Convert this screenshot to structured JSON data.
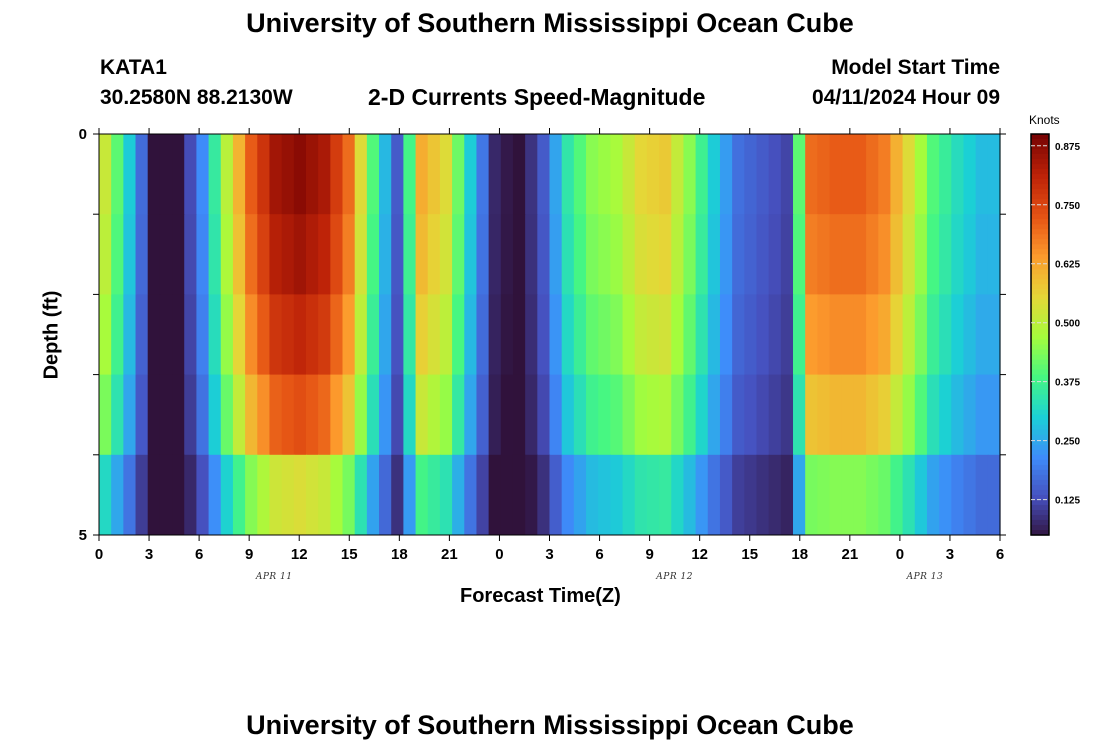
{
  "header": {
    "title": "University of Southern Mississippi Ocean Cube",
    "station": "KATA1",
    "coords": "30.2580N  88.2130W",
    "plot_title": "2-D Currents Speed-Magnitude",
    "model_start_label": "Model Start Time",
    "model_start_value": "04/11/2024 Hour 09",
    "bottom_title": "University of Southern Mississippi Ocean Cube"
  },
  "chart_data": {
    "type": "heatmap",
    "title": "2-D Currents Speed-Magnitude",
    "xlabel": "Forecast Time(Z)",
    "ylabel": "Depth (ft)",
    "x_tick_labels": [
      "0",
      "3",
      "6",
      "9",
      "12",
      "15",
      "18",
      "21",
      "0",
      "3",
      "6",
      "9",
      "12",
      "15",
      "18",
      "21",
      "0",
      "3",
      "6"
    ],
    "day_labels": [
      {
        "label": "APR 11",
        "at_tick": 3.5
      },
      {
        "label": "APR 12",
        "at_tick": 11.5
      },
      {
        "label": "APR 13",
        "at_tick": 16.5
      }
    ],
    "y_tick_labels": [
      "0",
      "5"
    ],
    "ylim": [
      0,
      5
    ],
    "x_hours_range": [
      0,
      54
    ],
    "layers_depth_ft": [
      0.5,
      1.5,
      2.5,
      3.5,
      4.5
    ],
    "speed_layers_knots": [
      [
        0.55,
        0.9,
        0.88,
        0.78,
        0.5
      ],
      [
        0.38,
        0.55,
        0.52,
        0.44,
        0.3
      ],
      [
        0.62,
        0.82,
        0.78,
        0.68,
        0.48
      ]
    ],
    "time_series_surface_knots": [
      0.52,
      0.3,
      0.05,
      0.04,
      0.22,
      0.5,
      0.72,
      0.85,
      0.88,
      0.84,
      0.7,
      0.4,
      0.15,
      0.62,
      0.55,
      0.3,
      0.08,
      0.04,
      0.15,
      0.35,
      0.45,
      0.48,
      0.56,
      0.58,
      0.45,
      0.3,
      0.18,
      0.15,
      0.12,
      0.7,
      0.72,
      0.72,
      0.68,
      0.55,
      0.4,
      0.33,
      0.28
    ],
    "colorbar": {
      "unit": "Knots",
      "ticks": [
        "0.875",
        "0.750",
        "0.625",
        "0.500",
        "0.375",
        "0.250",
        "0.125"
      ],
      "range": [
        0.05,
        0.9
      ]
    },
    "colormap": "turbo"
  }
}
